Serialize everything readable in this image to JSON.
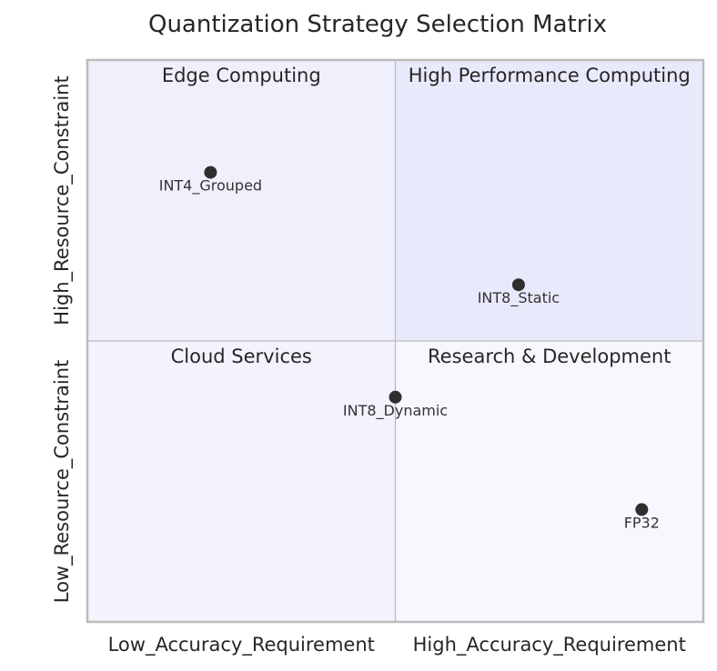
{
  "colors": {
    "q_top_left": "#eff0fc",
    "q_top_right": "#e9e9fc",
    "q_bottom_left": "#f3f3fd",
    "q_bottom_right": "#f7f7fe",
    "frame": "#bbbbbb",
    "divider": "#bbbbbb",
    "point": "#2f2f2f"
  },
  "chart_data": {
    "type": "scatter",
    "title": "Quantization Strategy Selection Matrix",
    "x_range": [
      0,
      1
    ],
    "y_range": [
      0,
      1
    ],
    "x_labels": [
      "Low_Accuracy_Requirement",
      "High_Accuracy_Requirement"
    ],
    "y_labels": [
      "Low_Resource_Constraint",
      "High_Resource_Constraint"
    ],
    "quadrants": {
      "top_left": "Edge Computing",
      "top_right": "High Performance Computing",
      "bottom_left": "Cloud Services",
      "bottom_right": "Research & Development"
    },
    "points": [
      {
        "label": "INT4_Grouped",
        "x": 0.2,
        "y": 0.8
      },
      {
        "label": "INT8_Static",
        "x": 0.7,
        "y": 0.6
      },
      {
        "label": "INT8_Dynamic",
        "x": 0.5,
        "y": 0.4
      },
      {
        "label": "FP32",
        "x": 0.9,
        "y": 0.2
      }
    ]
  }
}
